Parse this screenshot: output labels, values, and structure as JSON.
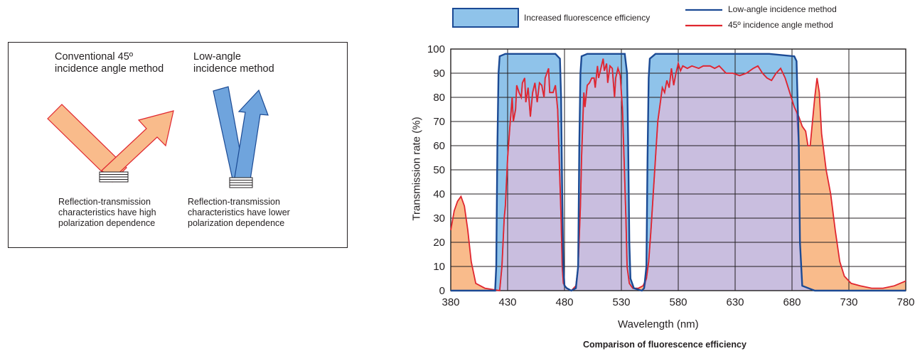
{
  "diagram": {
    "conventional_title": [
      "Conventional 45º",
      "incidence angle method"
    ],
    "lowangle_title": [
      "Low-angle",
      "incidence method"
    ],
    "conventional_caption": [
      "Reflection-transmission",
      "characteristics have high",
      "polarization dependence"
    ],
    "lowangle_caption": [
      "Reflection-transmission",
      "characteristics have lower",
      "polarization dependence"
    ],
    "colors": {
      "conventional_arrow": "#f9bb8b",
      "conventional_stroke": "#e0262f",
      "lowangle_arrow": "#6fa4dd",
      "lowangle_stroke": "#1b4a94"
    },
    "icons": {
      "mirror": "layered-filter-icon"
    }
  },
  "legend": {
    "efficiency_label": "Increased fluorescence efficiency",
    "low_angle_label": "Low-angle incidence method",
    "conventional_label": "45º incidence angle method",
    "colors": {
      "efficiency_fill": "#8fc3ea",
      "efficiency_stroke": "#1b4a94",
      "low_angle": "#1b4a94",
      "conventional": "#e0262f"
    }
  },
  "chart_data": {
    "type": "line",
    "title": "Comparison of fluorescence efficiency",
    "xlabel": "Wavelength (nm)",
    "ylabel": "Transmission rate (%)",
    "xlim": [
      380,
      780
    ],
    "ylim": [
      0,
      100
    ],
    "x_ticks": [
      380,
      430,
      480,
      530,
      580,
      630,
      680,
      730,
      780
    ],
    "y_ticks": [
      0,
      10,
      20,
      30,
      40,
      50,
      60,
      70,
      80,
      90,
      100
    ],
    "grid": true,
    "colors": {
      "overlap": "#c9bedf",
      "overlap_stroke": "#b06bb0",
      "outside_fill": "#f9bb8b",
      "conventional": "#e0262f",
      "low_angle": "#1b4a94",
      "efficiency_fill": "#8fc3ea"
    },
    "series": [
      {
        "name": "Low-angle incidence method",
        "points": [
          [
            380,
            0
          ],
          [
            416,
            0
          ],
          [
            419,
            0
          ],
          [
            420,
            10
          ],
          [
            421,
            60
          ],
          [
            422,
            90
          ],
          [
            423,
            97
          ],
          [
            428,
            98
          ],
          [
            440,
            98
          ],
          [
            460,
            98
          ],
          [
            472,
            98
          ],
          [
            476,
            96
          ],
          [
            477,
            80
          ],
          [
            478,
            40
          ],
          [
            479,
            10
          ],
          [
            480,
            2
          ],
          [
            482,
            1
          ],
          [
            486,
            0
          ],
          [
            490,
            1
          ],
          [
            492,
            10
          ],
          [
            493,
            60
          ],
          [
            494,
            90
          ],
          [
            495,
            97
          ],
          [
            500,
            98
          ],
          [
            525,
            98
          ],
          [
            533,
            98
          ],
          [
            535,
            90
          ],
          [
            536,
            60
          ],
          [
            537,
            20
          ],
          [
            538,
            5
          ],
          [
            541,
            1
          ],
          [
            548,
            0
          ],
          [
            550,
            1
          ],
          [
            552,
            10
          ],
          [
            553,
            55
          ],
          [
            554,
            88
          ],
          [
            555,
            96
          ],
          [
            560,
            98
          ],
          [
            600,
            98
          ],
          [
            640,
            98
          ],
          [
            660,
            98
          ],
          [
            682,
            97
          ],
          [
            684,
            95
          ],
          [
            686,
            60
          ],
          [
            687,
            20
          ],
          [
            689,
            2
          ],
          [
            700,
            0
          ],
          [
            780,
            0
          ]
        ]
      },
      {
        "name": "45º incidence angle method",
        "points": [
          [
            380,
            25
          ],
          [
            383,
            33
          ],
          [
            386,
            37
          ],
          [
            389,
            39
          ],
          [
            392,
            35
          ],
          [
            395,
            25
          ],
          [
            398,
            12
          ],
          [
            402,
            3
          ],
          [
            410,
            1
          ],
          [
            423,
            0
          ],
          [
            425,
            10
          ],
          [
            427,
            30
          ],
          [
            428,
            35
          ],
          [
            430,
            55
          ],
          [
            432,
            68
          ],
          [
            434,
            80
          ],
          [
            435,
            70
          ],
          [
            437,
            75
          ],
          [
            438,
            85
          ],
          [
            440,
            82
          ],
          [
            442,
            80
          ],
          [
            443,
            86
          ],
          [
            445,
            88
          ],
          [
            446,
            78
          ],
          [
            448,
            84
          ],
          [
            450,
            72
          ],
          [
            452,
            82
          ],
          [
            454,
            86
          ],
          [
            456,
            78
          ],
          [
            458,
            86
          ],
          [
            460,
            85
          ],
          [
            462,
            80
          ],
          [
            463,
            88
          ],
          [
            466,
            92
          ],
          [
            467,
            82
          ],
          [
            470,
            82
          ],
          [
            472,
            85
          ],
          [
            474,
            75
          ],
          [
            475,
            60
          ],
          [
            477,
            30
          ],
          [
            478,
            10
          ],
          [
            479,
            3
          ],
          [
            482,
            1
          ],
          [
            486,
            0
          ],
          [
            490,
            2
          ],
          [
            492,
            10
          ],
          [
            494,
            35
          ],
          [
            495,
            55
          ],
          [
            497,
            82
          ],
          [
            498,
            76
          ],
          [
            500,
            85
          ],
          [
            502,
            86
          ],
          [
            504,
            88
          ],
          [
            506,
            88
          ],
          [
            507,
            84
          ],
          [
            509,
            93
          ],
          [
            510,
            88
          ],
          [
            512,
            92
          ],
          [
            514,
            96
          ],
          [
            515,
            91
          ],
          [
            517,
            94
          ],
          [
            518,
            86
          ],
          [
            520,
            93
          ],
          [
            522,
            92
          ],
          [
            524,
            80
          ],
          [
            525,
            88
          ],
          [
            527,
            92
          ],
          [
            529,
            89
          ],
          [
            531,
            75
          ],
          [
            532,
            60
          ],
          [
            534,
            30
          ],
          [
            535,
            10
          ],
          [
            537,
            3
          ],
          [
            540,
            1
          ],
          [
            545,
            1
          ],
          [
            549,
            2
          ],
          [
            552,
            5
          ],
          [
            554,
            12
          ],
          [
            556,
            25
          ],
          [
            558,
            40
          ],
          [
            560,
            55
          ],
          [
            562,
            70
          ],
          [
            564,
            77
          ],
          [
            566,
            84
          ],
          [
            568,
            82
          ],
          [
            570,
            87
          ],
          [
            572,
            84
          ],
          [
            574,
            92
          ],
          [
            576,
            85
          ],
          [
            578,
            90
          ],
          [
            580,
            94
          ],
          [
            582,
            91
          ],
          [
            584,
            93
          ],
          [
            588,
            92
          ],
          [
            592,
            93
          ],
          [
            598,
            92
          ],
          [
            602,
            93
          ],
          [
            608,
            93
          ],
          [
            612,
            92
          ],
          [
            616,
            93
          ],
          [
            622,
            90
          ],
          [
            628,
            90
          ],
          [
            634,
            89
          ],
          [
            640,
            90
          ],
          [
            646,
            92
          ],
          [
            650,
            93
          ],
          [
            654,
            90
          ],
          [
            658,
            88
          ],
          [
            662,
            87
          ],
          [
            666,
            90
          ],
          [
            670,
            92
          ],
          [
            674,
            88
          ],
          [
            678,
            82
          ],
          [
            682,
            76
          ],
          [
            686,
            72
          ],
          [
            689,
            68
          ],
          [
            692,
            66
          ],
          [
            694,
            60
          ],
          [
            696,
            60
          ],
          [
            698,
            70
          ],
          [
            700,
            80
          ],
          [
            702,
            88
          ],
          [
            704,
            82
          ],
          [
            706,
            65
          ],
          [
            710,
            50
          ],
          [
            714,
            40
          ],
          [
            718,
            25
          ],
          [
            722,
            12
          ],
          [
            726,
            6
          ],
          [
            732,
            3
          ],
          [
            740,
            2
          ],
          [
            750,
            1
          ],
          [
            760,
            1
          ],
          [
            770,
            2
          ],
          [
            780,
            4
          ]
        ]
      }
    ]
  }
}
